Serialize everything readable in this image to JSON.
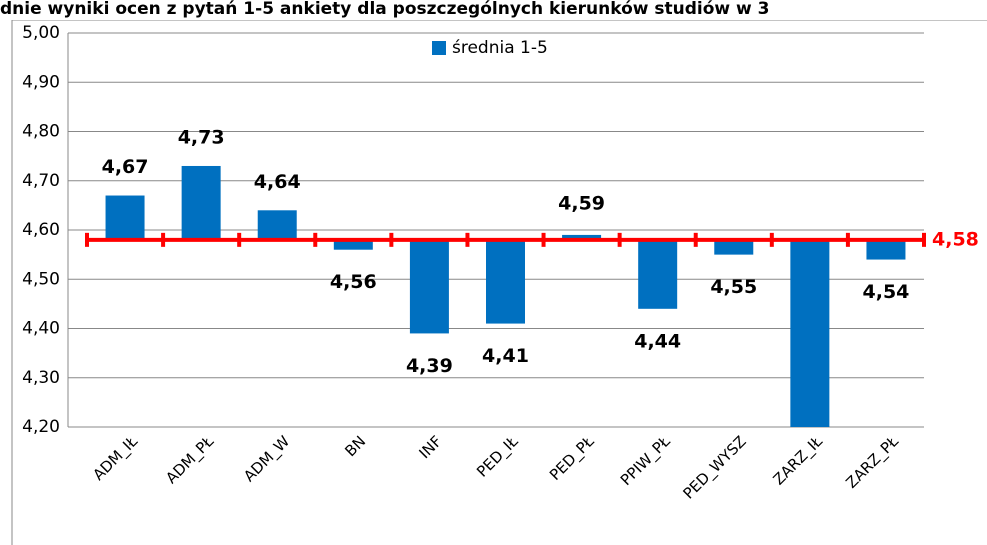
{
  "chart_data": {
    "type": "bar",
    "title": "dnie wyniki ocen z pytań 1-5 ankiety dla poszczególnych kierunków studiów w 3",
    "categories": [
      "ADM_IŁ",
      "ADM_PŁ",
      "ADM_W",
      "BN",
      "INF",
      "PED_IŁ",
      "PED_PŁ",
      "PPIW_PŁ",
      "PED_WYSZ",
      "ZARZ_IŁ",
      "ZARZ_PŁ"
    ],
    "series": [
      {
        "name": "średnia 1-5",
        "color": "#0070c0",
        "values": [
          4.67,
          4.73,
          4.64,
          4.56,
          4.39,
          4.41,
          4.59,
          4.44,
          4.55,
          4.2,
          4.54
        ],
        "value_labels": [
          "4,67",
          "4,73",
          "4,64",
          "4,56",
          "4,39",
          "4,41",
          "4,59",
          "4,44",
          "4,55",
          null,
          "4,54"
        ]
      }
    ],
    "reference": {
      "value": 4.58,
      "label": "4,58",
      "color": "#ff0000"
    },
    "ylim": [
      4.2,
      5.0
    ],
    "yticks": [
      {
        "value": 4.2,
        "label": "4,20"
      },
      {
        "value": 4.3,
        "label": "4,30"
      },
      {
        "value": 4.4,
        "label": "4,40"
      },
      {
        "value": 4.5,
        "label": "4,50"
      },
      {
        "value": 4.6,
        "label": "4,60"
      },
      {
        "value": 4.7,
        "label": "4,70"
      },
      {
        "value": 4.8,
        "label": "4,80"
      },
      {
        "value": 4.9,
        "label": "4,90"
      },
      {
        "value": 5.0,
        "label": "5,00"
      }
    ],
    "grid": true,
    "legend": "top"
  }
}
